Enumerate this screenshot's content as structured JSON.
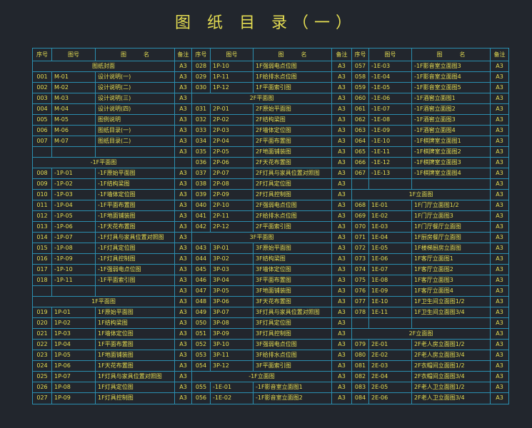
{
  "title": "图 纸 目 录（一）",
  "colors": {
    "background": "#22262d",
    "grid": "#2b8fb0",
    "text": "#e6de52"
  },
  "headers": {
    "no": "序号",
    "code": "图号",
    "name": "图　　　名",
    "note": "备注"
  },
  "groups": [
    {
      "rows": [
        {
          "section": "图纸封面",
          "note": "A3"
        },
        {
          "no": "001",
          "code": "M-01",
          "name": "设计说明(一)",
          "note": "A3"
        },
        {
          "no": "002",
          "code": "M-02",
          "name": "设计说明(二)",
          "note": "A3"
        },
        {
          "no": "003",
          "code": "M-03",
          "name": "设计说明(三)",
          "note": "A3"
        },
        {
          "no": "004",
          "code": "M-04",
          "name": "设计说明(四)",
          "note": "A3"
        },
        {
          "no": "005",
          "code": "M-05",
          "name": "图例说明",
          "note": "A3"
        },
        {
          "no": "006",
          "code": "M-06",
          "name": "图纸目录(一)",
          "note": "A3"
        },
        {
          "no": "007",
          "code": "M-07",
          "name": "图纸目录(二)",
          "note": "A3"
        },
        {
          "no": "",
          "code": "",
          "name": "",
          "note": "A3"
        },
        {
          "section": "-1F平面图",
          "note": ""
        },
        {
          "no": "008",
          "code": "-1P-01",
          "name": "-1F原始平面图",
          "note": "A3"
        },
        {
          "no": "009",
          "code": "-1P-02",
          "name": "-1F结构梁图",
          "note": "A3"
        },
        {
          "no": "010",
          "code": "-1P-03",
          "name": "-1F墙体定位图",
          "note": "A3"
        },
        {
          "no": "011",
          "code": "-1P-04",
          "name": "-1F平面布置图",
          "note": "A3"
        },
        {
          "no": "012",
          "code": "-1P-05",
          "name": "-1F地面铺装图",
          "note": "A3"
        },
        {
          "no": "013",
          "code": "-1P-06",
          "name": "-1F天花布置图",
          "note": "A3"
        },
        {
          "no": "014",
          "code": "-1P-07",
          "name": "-1F灯具与家具位置对照图",
          "note": "A3"
        },
        {
          "no": "015",
          "code": "-1P-08",
          "name": "-1F灯具定位图",
          "note": "A3"
        },
        {
          "no": "016",
          "code": "-1P-09",
          "name": "-1F灯具控制图",
          "note": "A3"
        },
        {
          "no": "017",
          "code": "-1P-10",
          "name": "-1F强弱电点位图",
          "note": "A3"
        },
        {
          "no": "018",
          "code": "-1P-11",
          "name": "-1F平面索引图",
          "note": "A3"
        },
        {
          "no": "",
          "code": "",
          "name": "",
          "note": "A3"
        },
        {
          "section": "1F平面图",
          "note": "A3"
        },
        {
          "no": "019",
          "code": "1P-01",
          "name": "1F原始平面图",
          "note": "A3"
        },
        {
          "no": "020",
          "code": "1P-02",
          "name": "1F结构梁图",
          "note": "A3"
        },
        {
          "no": "021",
          "code": "1P-03",
          "name": "1F墙体定位图",
          "note": "A3"
        },
        {
          "no": "022",
          "code": "1P-04",
          "name": "1F平面布置图",
          "note": "A3"
        },
        {
          "no": "023",
          "code": "1P-05",
          "name": "1F地面铺装图",
          "note": "A3"
        },
        {
          "no": "024",
          "code": "1P-06",
          "name": "1F天花布置图",
          "note": "A3"
        },
        {
          "no": "025",
          "code": "1P-07",
          "name": "1F灯具与家具位置对照图",
          "note": "A3"
        },
        {
          "no": "026",
          "code": "1P-08",
          "name": "1F灯具定位图",
          "note": "A3"
        },
        {
          "no": "027",
          "code": "1P-09",
          "name": "1F灯具控制图",
          "note": "A3"
        }
      ]
    },
    {
      "rows": [
        {
          "no": "028",
          "code": "1P-10",
          "name": "1F强弱电点位图",
          "note": "A3"
        },
        {
          "no": "029",
          "code": "1P-11",
          "name": "1F给排水点位图",
          "note": "A3"
        },
        {
          "no": "030",
          "code": "1P-12",
          "name": "1F平面索引图",
          "note": "A3"
        },
        {
          "section": "2F平面图",
          "note": "A3"
        },
        {
          "no": "031",
          "code": "2P-01",
          "name": "2F原始平面图",
          "note": "A3"
        },
        {
          "no": "032",
          "code": "2P-02",
          "name": "2F结构梁图",
          "note": "A3"
        },
        {
          "no": "033",
          "code": "2P-03",
          "name": "2F墙体定位图",
          "note": "A3"
        },
        {
          "no": "034",
          "code": "2P-04",
          "name": "2F平面布置图",
          "note": "A3"
        },
        {
          "no": "035",
          "code": "2P-05",
          "name": "2F地面铺装图",
          "note": "A3"
        },
        {
          "no": "036",
          "code": "2P-06",
          "name": "2F天花布置图",
          "note": "A3"
        },
        {
          "no": "037",
          "code": "2P-07",
          "name": "2F灯具与家具位置对照图",
          "note": "A3"
        },
        {
          "no": "038",
          "code": "2P-08",
          "name": "2F灯具定位图",
          "note": "A3"
        },
        {
          "no": "039",
          "code": "2P-09",
          "name": "2F灯具控制图",
          "note": "A3"
        },
        {
          "no": "040",
          "code": "2P-10",
          "name": "2F强弱电点位图",
          "note": "A3"
        },
        {
          "no": "041",
          "code": "2P-11",
          "name": "2F给排水点位图",
          "note": "A3"
        },
        {
          "no": "042",
          "code": "2P-12",
          "name": "2F平面索引图",
          "note": "A3"
        },
        {
          "section": "3F平面图",
          "note": "A3"
        },
        {
          "no": "043",
          "code": "3P-01",
          "name": "3F原始平面图",
          "note": "A3"
        },
        {
          "no": "044",
          "code": "3P-02",
          "name": "3F结构梁图",
          "note": "A3"
        },
        {
          "no": "045",
          "code": "3P-03",
          "name": "3F墙体定位图",
          "note": "A3"
        },
        {
          "no": "046",
          "code": "3P-04",
          "name": "3F平面布置图",
          "note": "A3"
        },
        {
          "no": "047",
          "code": "3P-05",
          "name": "3F地面铺装图",
          "note": "A3"
        },
        {
          "no": "048",
          "code": "3P-06",
          "name": "3F天花布置图",
          "note": "A3"
        },
        {
          "no": "049",
          "code": "3P-07",
          "name": "3F灯具与家具位置对照图",
          "note": "A3"
        },
        {
          "no": "050",
          "code": "3P-08",
          "name": "3F灯具定位图",
          "note": "A3"
        },
        {
          "no": "051",
          "code": "3P-09",
          "name": "3F灯具控制图",
          "note": "A3"
        },
        {
          "no": "052",
          "code": "3P-10",
          "name": "3F强弱电点位图",
          "note": "A3"
        },
        {
          "no": "053",
          "code": "3P-11",
          "name": "3F给排水点位图",
          "note": "A3"
        },
        {
          "no": "054",
          "code": "3P-12",
          "name": "3F平面索引图",
          "note": "A3"
        },
        {
          "section": "-1F立面图",
          "note": "A3"
        },
        {
          "no": "055",
          "code": "-1E-01",
          "name": "-1F影音室立面图1",
          "note": "A3"
        },
        {
          "no": "056",
          "code": "-1E-02",
          "name": "-1F影音室立面图2",
          "note": "A3"
        }
      ]
    },
    {
      "rows": [
        {
          "no": "057",
          "code": "-1E-03",
          "name": "-1F影音室立面图3",
          "note": "A3"
        },
        {
          "no": "058",
          "code": "-1E-04",
          "name": "-1F影音室立面图4",
          "note": "A3"
        },
        {
          "no": "059",
          "code": "-1E-05",
          "name": "-1F影音室立面图5",
          "note": "A3"
        },
        {
          "no": "060",
          "code": "-1E-06",
          "name": "-1F酒窖立面图1",
          "note": "A3"
        },
        {
          "no": "061",
          "code": "-1E-07",
          "name": "-1F酒窖立面图2",
          "note": "A3"
        },
        {
          "no": "062",
          "code": "-1E-08",
          "name": "-1F酒窖立面图3",
          "note": "A3"
        },
        {
          "no": "063",
          "code": "-1E-09",
          "name": "-1F酒窖立面图4",
          "note": "A3"
        },
        {
          "no": "064",
          "code": "-1E-10",
          "name": "-1F棋牌室立面图1",
          "note": "A3"
        },
        {
          "no": "065",
          "code": "-1E-11",
          "name": "-1F棋牌室立面图2",
          "note": "A3"
        },
        {
          "no": "066",
          "code": "-1E-12",
          "name": "-1F棋牌室立面图3",
          "note": "A3"
        },
        {
          "no": "067",
          "code": "-1E-13",
          "name": "-1F棋牌室立面图4",
          "note": "A3"
        },
        {
          "no": "",
          "code": "",
          "name": "",
          "note": "A3"
        },
        {
          "section": "1F立面图",
          "note": "A3"
        },
        {
          "no": "068",
          "code": "1E-01",
          "name": "1F门厅立面图1/2",
          "note": "A3"
        },
        {
          "no": "069",
          "code": "1E-02",
          "name": "1F门厅立面图3",
          "note": "A3"
        },
        {
          "no": "070",
          "code": "1E-03",
          "name": "1F门厅餐厅立面图",
          "note": "A3"
        },
        {
          "no": "071",
          "code": "1E-04",
          "name": "1F厨房餐厅立面图",
          "note": "A3"
        },
        {
          "no": "072",
          "code": "1E-05",
          "name": "1F楼梯厨房立面图",
          "note": "A3"
        },
        {
          "no": "073",
          "code": "1E-06",
          "name": "1F客厅立面图1",
          "note": "A3"
        },
        {
          "no": "074",
          "code": "1E-07",
          "name": "1F客厅立面图2",
          "note": "A3"
        },
        {
          "no": "075",
          "code": "1E-08",
          "name": "1F客厅立面图3",
          "note": "A3"
        },
        {
          "no": "076",
          "code": "1E-09",
          "name": "1F客厅立面图4",
          "note": "A3"
        },
        {
          "no": "077",
          "code": "1E-10",
          "name": "1F卫生间立面图1/2",
          "note": "A3"
        },
        {
          "no": "078",
          "code": "1E-11",
          "name": "1F卫生间立面图3/4",
          "note": "A3"
        },
        {
          "no": "",
          "code": "",
          "name": "",
          "note": "A3"
        },
        {
          "section": "2F立面图",
          "note": "A3"
        },
        {
          "no": "079",
          "code": "2E-01",
          "name": "2F老人房立面图1/2",
          "note": "A3"
        },
        {
          "no": "080",
          "code": "2E-02",
          "name": "2F老人房立面图3/4",
          "note": "A3"
        },
        {
          "no": "081",
          "code": "2E-03",
          "name": "2F衣帽间立面图1/2",
          "note": "A3"
        },
        {
          "no": "082",
          "code": "2E-04",
          "name": "2F衣帽间立面图3/4",
          "note": "A3"
        },
        {
          "no": "083",
          "code": "2E-05",
          "name": "2F老人卫立面图1/2",
          "note": "A3"
        },
        {
          "no": "084",
          "code": "2E-06",
          "name": "2F老人卫立面图3/4",
          "note": "A3"
        }
      ]
    }
  ]
}
